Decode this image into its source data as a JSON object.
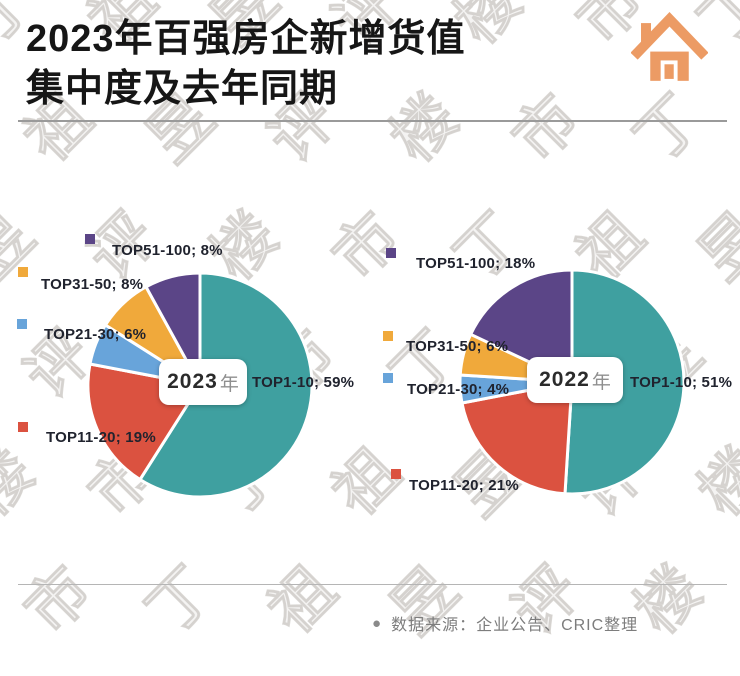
{
  "header": {
    "title_line1": "2023年百强房企新增货值",
    "title_line2": "集中度及去年同期"
  },
  "footer": {
    "bullet": "●",
    "source": "数据来源：企业公告、CRIC整理"
  },
  "watermark_text": "丁祖昱评楼市",
  "colors": {
    "teal": "#3FA0A0",
    "red": "#DB5240",
    "blue": "#68A4DA",
    "yellow": "#F0A93B",
    "purple": "#5B4587",
    "house_icon": "#EC9B64",
    "label_text": "#20232E",
    "source_text": "#7D7D7D"
  },
  "chart_data": [
    {
      "type": "pie",
      "title": "2023年",
      "center_year": "2023",
      "center_suffix": "年",
      "categories": [
        "TOP1-10",
        "TOP11-20",
        "TOP21-30",
        "TOP31-50",
        "TOP51-100"
      ],
      "values": [
        59,
        19,
        6,
        8,
        8
      ],
      "unit": "%",
      "colors": [
        "#3FA0A0",
        "#DB5240",
        "#68A4DA",
        "#F0A93B",
        "#5B4587"
      ],
      "slice_labels": [
        "TOP1-10; 59%",
        "TOP11-20; 19%",
        "TOP21-30; 6%",
        "TOP31-50; 8%",
        "TOP51-100; 8%"
      ],
      "start_angle_deg": 0,
      "direction": "clockwise",
      "label_position": "outside"
    },
    {
      "type": "pie",
      "title": "2022年",
      "center_year": "2022",
      "center_suffix": "年",
      "categories": [
        "TOP1-10",
        "TOP11-20",
        "TOP21-30",
        "TOP31-50",
        "TOP51-100"
      ],
      "values": [
        51,
        21,
        4,
        6,
        18
      ],
      "unit": "%",
      "colors": [
        "#3FA0A0",
        "#DB5240",
        "#68A4DA",
        "#F0A93B",
        "#5B4587"
      ],
      "slice_labels": [
        "TOP1-10; 51%",
        "TOP11-20; 21%",
        "TOP21-30; 4%",
        "TOP31-50; 6%",
        "TOP51-100; 18%"
      ],
      "start_angle_deg": 0,
      "direction": "clockwise",
      "label_position": "outside"
    }
  ]
}
